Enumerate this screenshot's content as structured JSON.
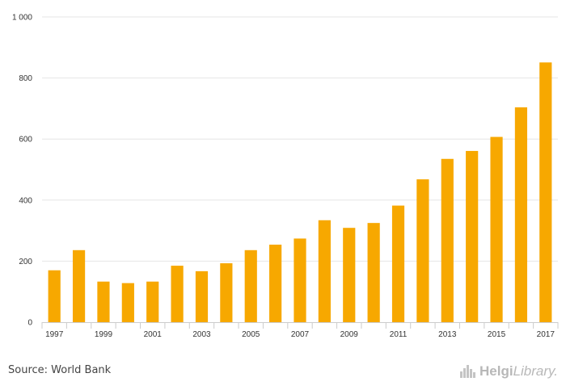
{
  "chart_data": {
    "type": "bar",
    "categories": [
      "1997",
      "1998",
      "1999",
      "2000",
      "2001",
      "2002",
      "2003",
      "2004",
      "2005",
      "2006",
      "2007",
      "2008",
      "2009",
      "2010",
      "2011",
      "2012",
      "2013",
      "2014",
      "2015",
      "2016",
      "2017"
    ],
    "values": [
      170,
      236,
      133,
      128,
      133,
      185,
      167,
      193,
      236,
      254,
      274,
      334,
      309,
      325,
      382,
      468,
      535,
      561,
      607,
      704,
      851
    ],
    "x_tick_labels": [
      "1997",
      "1999",
      "2001",
      "2003",
      "2005",
      "2007",
      "2009",
      "2011",
      "2013",
      "2015",
      "2017"
    ],
    "y_ticks": [
      0,
      200,
      400,
      600,
      800,
      1000
    ],
    "y_tick_labels": [
      "0",
      "200",
      "400",
      "600",
      "800",
      "1 000"
    ],
    "ylim": [
      0,
      1000
    ],
    "grid": true,
    "bar_color": "#f7a800"
  },
  "footer": {
    "source": "Source: World Bank",
    "logo_part1": "Helgi",
    "logo_part2": "Library."
  }
}
